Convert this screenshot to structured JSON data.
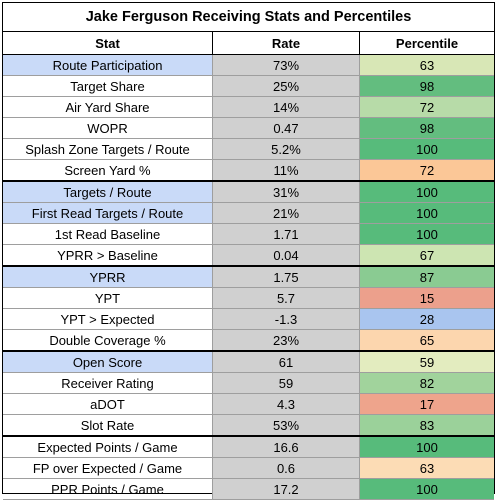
{
  "title": "Jake Ferguson Receiving Stats and Percentiles",
  "columns": {
    "stat": "Stat",
    "rate": "Rate",
    "percentile": "Percentile"
  },
  "rows": [
    {
      "stat": "Route Participation",
      "rate": "73%",
      "percentile": "63",
      "highlight": true,
      "color": "#d8e7b6"
    },
    {
      "stat": "Target Share",
      "rate": "25%",
      "percentile": "98",
      "highlight": false,
      "color": "#63bd7f"
    },
    {
      "stat": "Air Yard Share",
      "rate": "14%",
      "percentile": "72",
      "highlight": false,
      "color": "#b7dba8"
    },
    {
      "stat": "WOPR",
      "rate": "0.47",
      "percentile": "98",
      "highlight": false,
      "color": "#63bd7f"
    },
    {
      "stat": "Splash Zone Targets / Route",
      "rate": "5.2%",
      "percentile": "100",
      "highlight": false,
      "color": "#57bb7b"
    },
    {
      "stat": "Screen Yard %",
      "rate": "11%",
      "percentile": "72",
      "highlight": false,
      "color": "#fbc797",
      "sep": true
    },
    {
      "stat": "Targets / Route",
      "rate": "31%",
      "percentile": "100",
      "highlight": true,
      "color": "#57bb7b"
    },
    {
      "stat": "First Read Targets / Route",
      "rate": "21%",
      "percentile": "100",
      "highlight": true,
      "color": "#57bb7b"
    },
    {
      "stat": "1st Read Baseline",
      "rate": "1.71",
      "percentile": "100",
      "highlight": false,
      "color": "#57bb7b"
    },
    {
      "stat": "YPRR > Baseline",
      "rate": "0.04",
      "percentile": "67",
      "highlight": false,
      "color": "#cde5b2",
      "sep": true
    },
    {
      "stat": "YPRR",
      "rate": "1.75",
      "percentile": "87",
      "highlight": true,
      "color": "#8acb92"
    },
    {
      "stat": "YPT",
      "rate": "5.7",
      "percentile": "15",
      "highlight": false,
      "color": "#eca08c"
    },
    {
      "stat": "YPT > Expected",
      "rate": "-1.3",
      "percentile": "28",
      "highlight": false,
      "color": "#a9c5ef"
    },
    {
      "stat": "Double Coverage %",
      "rate": "23%",
      "percentile": "65",
      "highlight": false,
      "color": "#fcd6ae",
      "sep": true
    },
    {
      "stat": "Open Score",
      "rate": "61",
      "percentile": "59",
      "highlight": true,
      "color": "#e3ecbf"
    },
    {
      "stat": "Receiver Rating",
      "rate": "59",
      "percentile": "82",
      "highlight": false,
      "color": "#a1d39c"
    },
    {
      "stat": "aDOT",
      "rate": "4.3",
      "percentile": "17",
      "highlight": false,
      "color": "#eea48c"
    },
    {
      "stat": "Slot Rate",
      "rate": "53%",
      "percentile": "83",
      "highlight": false,
      "color": "#9bd19a",
      "sep": true
    },
    {
      "stat": "Expected Points / Game",
      "rate": "16.6",
      "percentile": "100",
      "highlight": false,
      "color": "#57bb7b"
    },
    {
      "stat": "FP over Expected / Game",
      "rate": "0.6",
      "percentile": "63",
      "highlight": false,
      "color": "#fcdcb5"
    },
    {
      "stat": "PPR Points / Game",
      "rate": "17.2",
      "percentile": "100",
      "highlight": false,
      "color": "#57bb7b"
    }
  ]
}
